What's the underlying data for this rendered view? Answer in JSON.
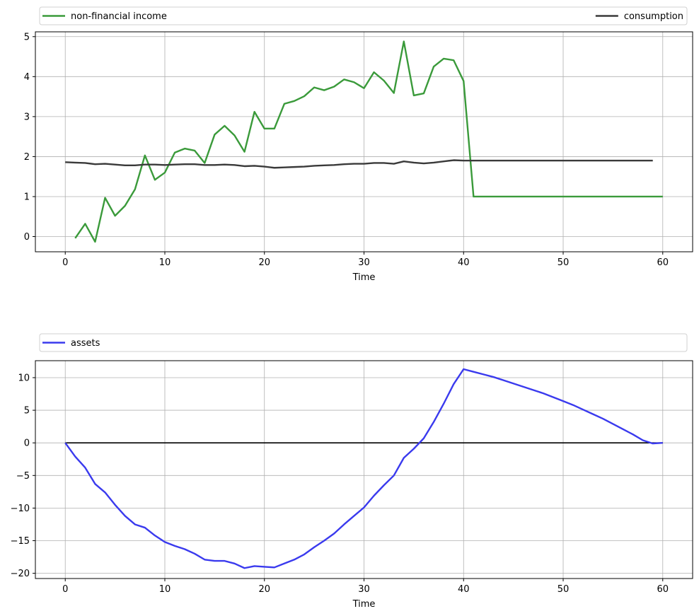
{
  "chart_data": [
    {
      "type": "line",
      "xlabel": "Time",
      "ylabel": "",
      "xlim": [
        -3,
        63
      ],
      "ylim": [
        -0.38,
        5.12
      ],
      "xticks": [
        0,
        10,
        20,
        30,
        40,
        50,
        60
      ],
      "yticks": [
        0,
        1,
        2,
        3,
        4,
        5
      ],
      "grid": true,
      "legend_placement": "above-plot",
      "series": [
        {
          "name": "non-financial income",
          "color": "#3a9a3a",
          "x": [
            1,
            2,
            3,
            4,
            5,
            6,
            7,
            8,
            9,
            10,
            11,
            12,
            13,
            14,
            15,
            16,
            17,
            18,
            19,
            20,
            21,
            22,
            23,
            24,
            25,
            26,
            27,
            28,
            29,
            30,
            31,
            32,
            33,
            34,
            35,
            36,
            37,
            38,
            39,
            40,
            41,
            42,
            43,
            44,
            45,
            46,
            47,
            48,
            49,
            50,
            51,
            52,
            53,
            54,
            55,
            56,
            57,
            58,
            59,
            60
          ],
          "values": [
            -0.04,
            0.32,
            -0.13,
            0.97,
            0.52,
            0.77,
            1.18,
            2.03,
            1.42,
            1.6,
            2.1,
            2.2,
            2.15,
            1.84,
            2.55,
            2.77,
            2.53,
            2.12,
            3.12,
            2.7,
            2.7,
            3.32,
            3.39,
            3.51,
            3.73,
            3.66,
            3.75,
            3.93,
            3.86,
            3.71,
            4.11,
            3.9,
            3.59,
            4.88,
            3.53,
            3.58,
            4.25,
            4.45,
            4.41,
            3.89,
            1.0,
            1.0,
            1.0,
            1.0,
            1.0,
            1.0,
            1.0,
            1.0,
            1.0,
            1.0,
            1.0,
            1.0,
            1.0,
            1.0,
            1.0,
            1.0,
            1.0,
            1.0,
            1.0,
            1.0
          ]
        },
        {
          "name": "consumption",
          "color": "#3a3a3a",
          "x": [
            0,
            1,
            2,
            3,
            4,
            5,
            6,
            7,
            8,
            9,
            10,
            11,
            12,
            13,
            14,
            15,
            16,
            17,
            18,
            19,
            20,
            21,
            22,
            23,
            24,
            25,
            26,
            27,
            28,
            29,
            30,
            31,
            32,
            33,
            34,
            35,
            36,
            37,
            38,
            39,
            40,
            41,
            42,
            43,
            44,
            45,
            46,
            47,
            48,
            49,
            50,
            51,
            52,
            53,
            54,
            55,
            56,
            57,
            58,
            59
          ],
          "values": [
            1.86,
            1.85,
            1.84,
            1.81,
            1.82,
            1.8,
            1.78,
            1.78,
            1.8,
            1.8,
            1.79,
            1.8,
            1.81,
            1.81,
            1.79,
            1.79,
            1.8,
            1.79,
            1.76,
            1.77,
            1.75,
            1.72,
            1.73,
            1.74,
            1.75,
            1.77,
            1.78,
            1.79,
            1.81,
            1.82,
            1.82,
            1.84,
            1.84,
            1.82,
            1.88,
            1.85,
            1.83,
            1.85,
            1.88,
            1.91,
            1.9,
            1.9,
            1.9,
            1.9,
            1.9,
            1.9,
            1.9,
            1.9,
            1.9,
            1.9,
            1.9,
            1.9,
            1.9,
            1.9,
            1.9,
            1.9,
            1.9,
            1.9,
            1.9,
            1.9
          ]
        }
      ]
    },
    {
      "type": "line",
      "xlabel": "Time",
      "ylabel": "",
      "xlim": [
        -3,
        63
      ],
      "ylim": [
        -20.8,
        12.6
      ],
      "xticks": [
        0,
        10,
        20,
        30,
        40,
        50,
        60
      ],
      "yticks": [
        -20,
        -15,
        -10,
        -5,
        0,
        5,
        10
      ],
      "grid": true,
      "legend_placement": "above-plot",
      "reference_line": {
        "y": 0,
        "x": [
          0,
          60
        ],
        "color": "#000000"
      },
      "series": [
        {
          "name": "assets",
          "color": "#3a3aee",
          "x": [
            0,
            1,
            2,
            3,
            4,
            5,
            6,
            7,
            8,
            9,
            10,
            11,
            12,
            13,
            14,
            15,
            16,
            17,
            18,
            19,
            20,
            21,
            22,
            23,
            24,
            25,
            26,
            27,
            28,
            29,
            30,
            31,
            32,
            33,
            34,
            35,
            36,
            37,
            38,
            39,
            40,
            41,
            42,
            43,
            44,
            45,
            46,
            47,
            48,
            49,
            50,
            51,
            52,
            53,
            54,
            55,
            56,
            57,
            58,
            59,
            60
          ],
          "values": [
            0.0,
            -2.1,
            -3.8,
            -6.3,
            -7.6,
            -9.5,
            -11.2,
            -12.5,
            -13.0,
            -14.2,
            -15.2,
            -15.8,
            -16.3,
            -17.0,
            -17.9,
            -18.1,
            -18.1,
            -18.5,
            -19.2,
            -18.9,
            -19.0,
            -19.1,
            -18.5,
            -17.9,
            -17.1,
            -16.0,
            -15.0,
            -13.9,
            -12.5,
            -11.2,
            -9.9,
            -8.1,
            -6.5,
            -5.0,
            -2.3,
            -0.9,
            0.7,
            3.2,
            6.0,
            9.0,
            11.3,
            10.9,
            10.5,
            10.1,
            9.6,
            9.1,
            8.6,
            8.1,
            7.6,
            7.0,
            6.4,
            5.8,
            5.1,
            4.4,
            3.7,
            2.9,
            2.1,
            1.3,
            0.4,
            -0.1,
            0.0
          ]
        }
      ]
    }
  ]
}
